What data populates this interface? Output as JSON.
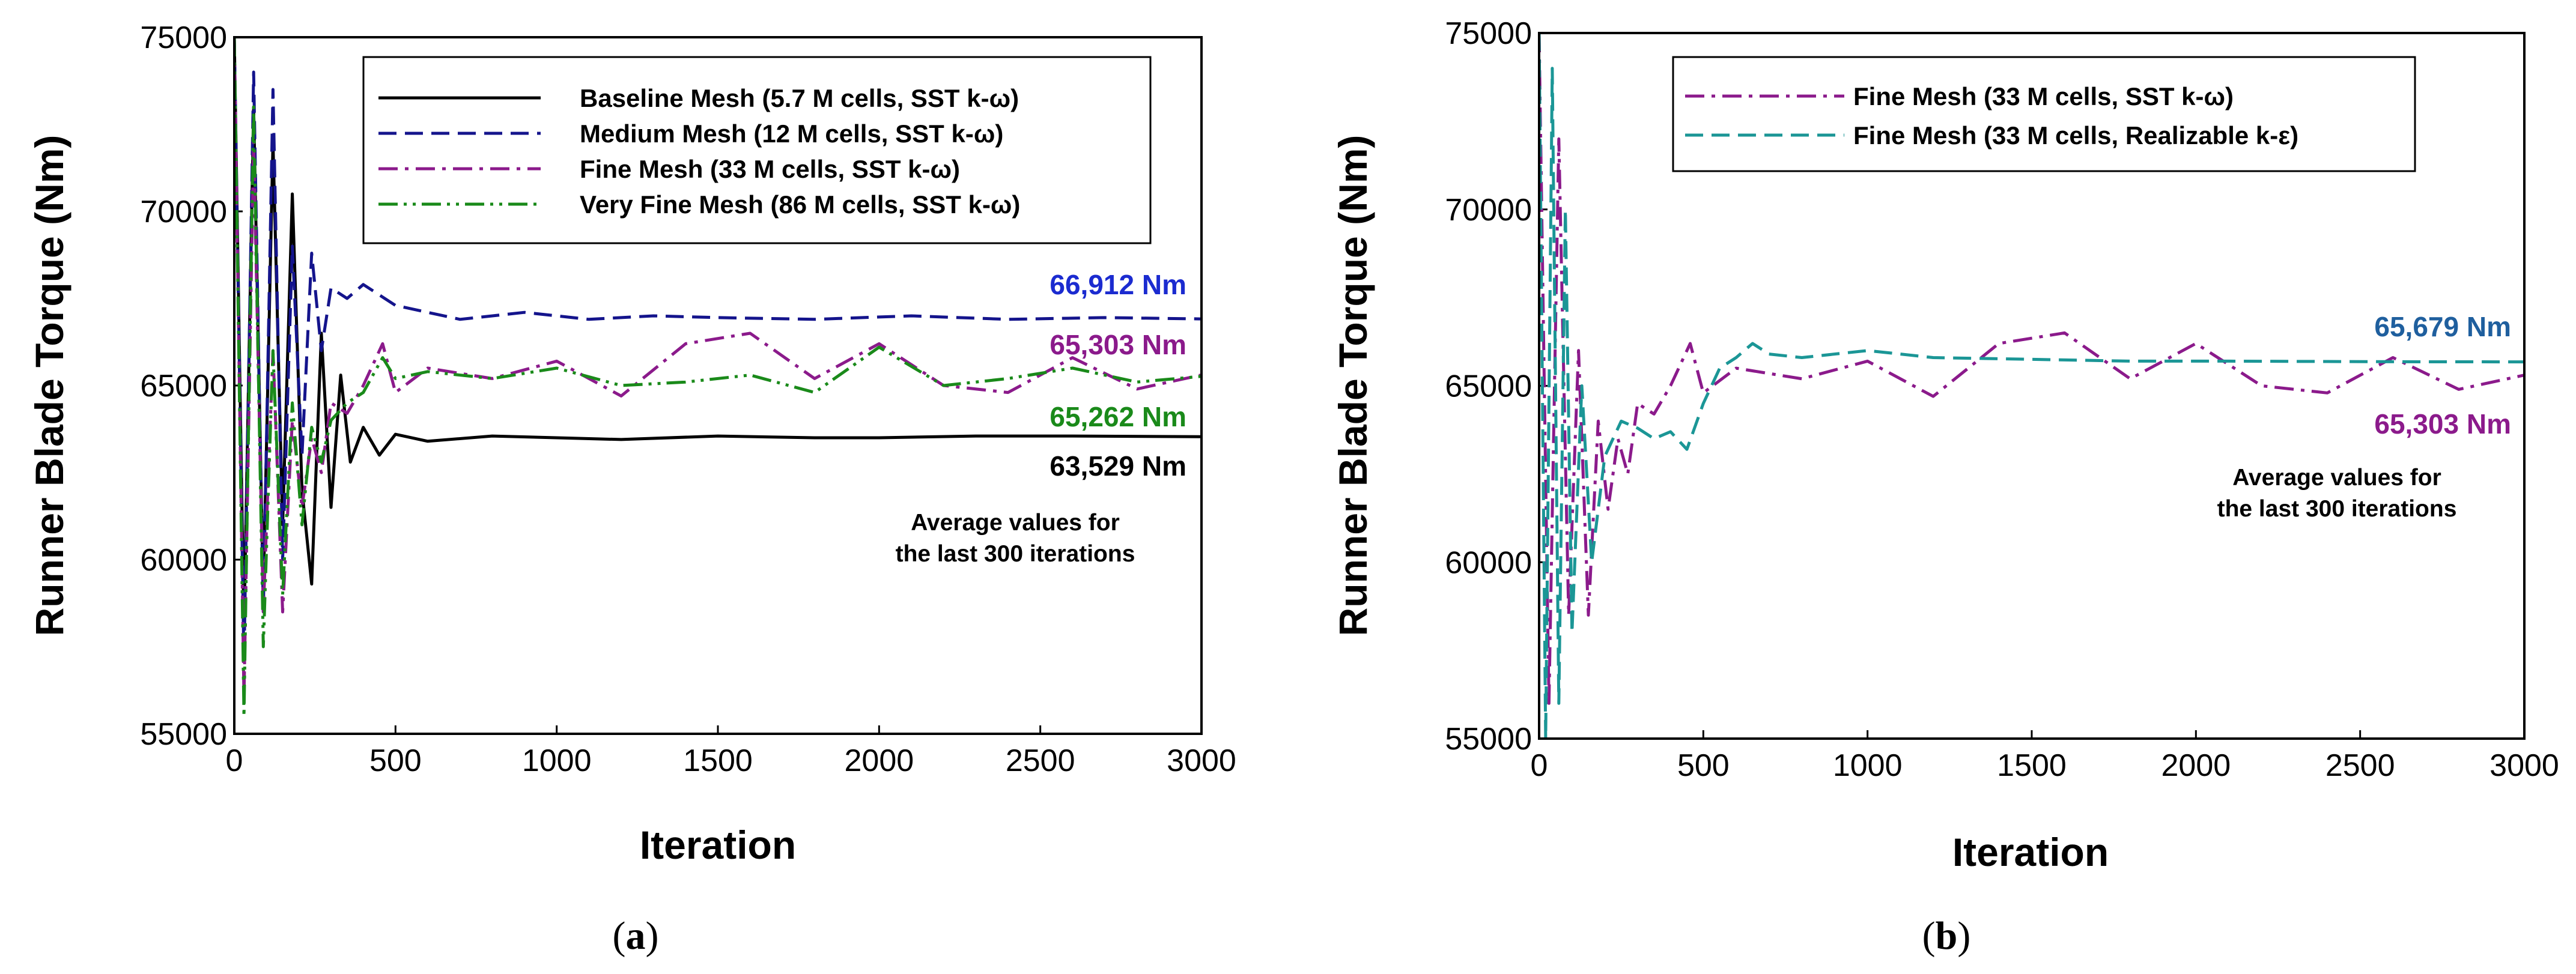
{
  "colors": {
    "baseline": "#000000",
    "medium": "#14148c",
    "fine": "#8b1a8b",
    "very_fine": "#1a8a1a",
    "realizable": "#1b9696",
    "anno_blue": "#1b2bd0",
    "anno_teal_blue": "#1f5f9e"
  },
  "chart_data": [
    {
      "type": "line",
      "panel_label": "a",
      "xlabel": "Iteration",
      "ylabel": "Runner Blade Torque (Nm)",
      "xlim": [
        0,
        3000
      ],
      "ylim": [
        55000,
        75000
      ],
      "xticks": [
        0,
        500,
        1000,
        1500,
        2000,
        2500,
        3000
      ],
      "yticks": [
        55000,
        60000,
        65000,
        70000,
        75000
      ],
      "xtick_labels": [
        "0",
        "500",
        "1000",
        "1500",
        "2000",
        "2500",
        "3000"
      ],
      "ytick_labels": [
        "55000",
        "60000",
        "65000",
        "70000",
        "75000"
      ],
      "legend_position": "top-right",
      "series": [
        {
          "name": "Baseline Mesh (5.7 M cells, SST k-ω)",
          "style": "solid",
          "color_key": "baseline",
          "final_average": 63529,
          "final_label": "63,529 Nm",
          "x": [
            0,
            30,
            60,
            90,
            120,
            150,
            180,
            210,
            240,
            270,
            300,
            330,
            360,
            400,
            450,
            500,
            600,
            800,
            1000,
            1200,
            1500,
            1800,
            2000,
            2300,
            2600,
            3000
          ],
          "y": [
            75000,
            58000,
            73000,
            59000,
            72000,
            61000,
            70500,
            62000,
            59300,
            66500,
            61500,
            65300,
            62800,
            63800,
            63000,
            63600,
            63400,
            63550,
            63500,
            63450,
            63550,
            63500,
            63500,
            63550,
            63550,
            63529
          ]
        },
        {
          "name": "Medium Mesh (12 M cells, SST k-ω)",
          "style": "dashed",
          "color_key": "medium",
          "final_average": 66912,
          "final_label": "66,912 Nm",
          "x": [
            0,
            30,
            60,
            90,
            120,
            150,
            180,
            210,
            240,
            270,
            300,
            350,
            400,
            500,
            700,
            900,
            1100,
            1300,
            1500,
            1800,
            2100,
            2400,
            2700,
            3000
          ],
          "y": [
            75000,
            57000,
            74000,
            58500,
            73500,
            60000,
            69000,
            63000,
            68800,
            66000,
            67800,
            67500,
            67900,
            67300,
            66900,
            67100,
            66900,
            67000,
            66950,
            66900,
            67000,
            66900,
            66950,
            66912
          ]
        },
        {
          "name": "Fine Mesh (33 M cells, SST k-ω)",
          "style": "dashdot",
          "color_key": "fine",
          "final_average": 65303,
          "final_label": "65,303 Nm",
          "x": [
            0,
            30,
            60,
            90,
            120,
            150,
            180,
            210,
            240,
            270,
            300,
            350,
            400,
            460,
            500,
            600,
            800,
            1000,
            1200,
            1400,
            1600,
            1800,
            2000,
            2200,
            2400,
            2600,
            2800,
            3000
          ],
          "y": [
            75000,
            56000,
            72000,
            58500,
            66000,
            58500,
            64000,
            61500,
            63500,
            62500,
            64500,
            64200,
            65000,
            66200,
            64800,
            65500,
            65200,
            65700,
            64700,
            66200,
            66500,
            65200,
            66200,
            65000,
            64800,
            65800,
            64900,
            65303
          ]
        },
        {
          "name": "Very Fine Mesh (86 M cells, SST k-ω)",
          "style": "dashdotdot",
          "color_key": "very_fine",
          "final_average": 65262,
          "final_label": "65,262 Nm",
          "x": [
            0,
            30,
            60,
            90,
            120,
            150,
            180,
            210,
            240,
            270,
            300,
            350,
            400,
            460,
            500,
            600,
            800,
            1000,
            1200,
            1400,
            1600,
            1800,
            2000,
            2200,
            2400,
            2600,
            2800,
            3000
          ],
          "y": [
            75000,
            55500,
            73000,
            57500,
            66000,
            59000,
            64500,
            61000,
            63800,
            62800,
            64000,
            64500,
            64800,
            65800,
            65200,
            65400,
            65200,
            65500,
            65000,
            65100,
            65300,
            64800,
            66100,
            65000,
            65200,
            65500,
            65100,
            65262
          ]
        }
      ],
      "annotations": {
        "medium_value": "66,912 Nm",
        "fine_value": "65,303 Nm",
        "very_fine_value": "65,262 Nm",
        "baseline_value": "63,529 Nm",
        "note_line1": "Average values for",
        "note_line2": "the last 300 iterations"
      }
    },
    {
      "type": "line",
      "panel_label": "b",
      "xlabel": "Iteration",
      "ylabel": "Runner Blade Torque (Nm)",
      "xlim": [
        0,
        3000
      ],
      "ylim": [
        55000,
        75000
      ],
      "xticks": [
        0,
        500,
        1000,
        1500,
        2000,
        2500,
        3000
      ],
      "yticks": [
        55000,
        60000,
        65000,
        70000,
        75000
      ],
      "xtick_labels": [
        "0",
        "500",
        "1000",
        "1500",
        "2000",
        "2500",
        "3000"
      ],
      "ytick_labels": [
        "55000",
        "60000",
        "65000",
        "70000",
        "75000"
      ],
      "legend_position": "top-left",
      "series": [
        {
          "name": "Fine Mesh (33 M cells, SST k-ω)",
          "style": "dashdot",
          "color_key": "fine",
          "final_average": 65303,
          "final_label": "65,303 Nm",
          "x": [
            0,
            30,
            60,
            90,
            120,
            150,
            180,
            210,
            240,
            270,
            300,
            350,
            400,
            460,
            500,
            600,
            800,
            1000,
            1200,
            1400,
            1600,
            1800,
            2000,
            2200,
            2400,
            2600,
            2800,
            3000
          ],
          "y": [
            75000,
            56000,
            72000,
            58500,
            66000,
            58500,
            64000,
            61500,
            63500,
            62500,
            64500,
            64200,
            65000,
            66200,
            64800,
            65500,
            65200,
            65700,
            64700,
            66200,
            66500,
            65200,
            66200,
            65000,
            64800,
            65800,
            64900,
            65303
          ]
        },
        {
          "name": "Fine Mesh (33 M cells, Realizable k-ε)",
          "style": "dashed",
          "color_key": "realizable",
          "final_average": 65679,
          "final_label": "65,679 Nm",
          "x": [
            0,
            20,
            40,
            60,
            80,
            100,
            130,
            160,
            200,
            250,
            300,
            350,
            400,
            450,
            500,
            550,
            600,
            650,
            700,
            800,
            1000,
            1200,
            1500,
            1800,
            2100,
            2400,
            2700,
            3000
          ],
          "y": [
            75000,
            55000,
            74000,
            56000,
            70000,
            58000,
            65000,
            60000,
            63000,
            64000,
            63800,
            63500,
            63700,
            63200,
            64500,
            65500,
            65800,
            66200,
            65900,
            65800,
            66000,
            65800,
            65750,
            65700,
            65700,
            65690,
            65680,
            65679
          ]
        }
      ],
      "annotations": {
        "realizable_value": "65,679 Nm",
        "fine_value": "65,303 Nm",
        "note_line1": "Average values for",
        "note_line2": "the last 300 iterations"
      }
    }
  ]
}
